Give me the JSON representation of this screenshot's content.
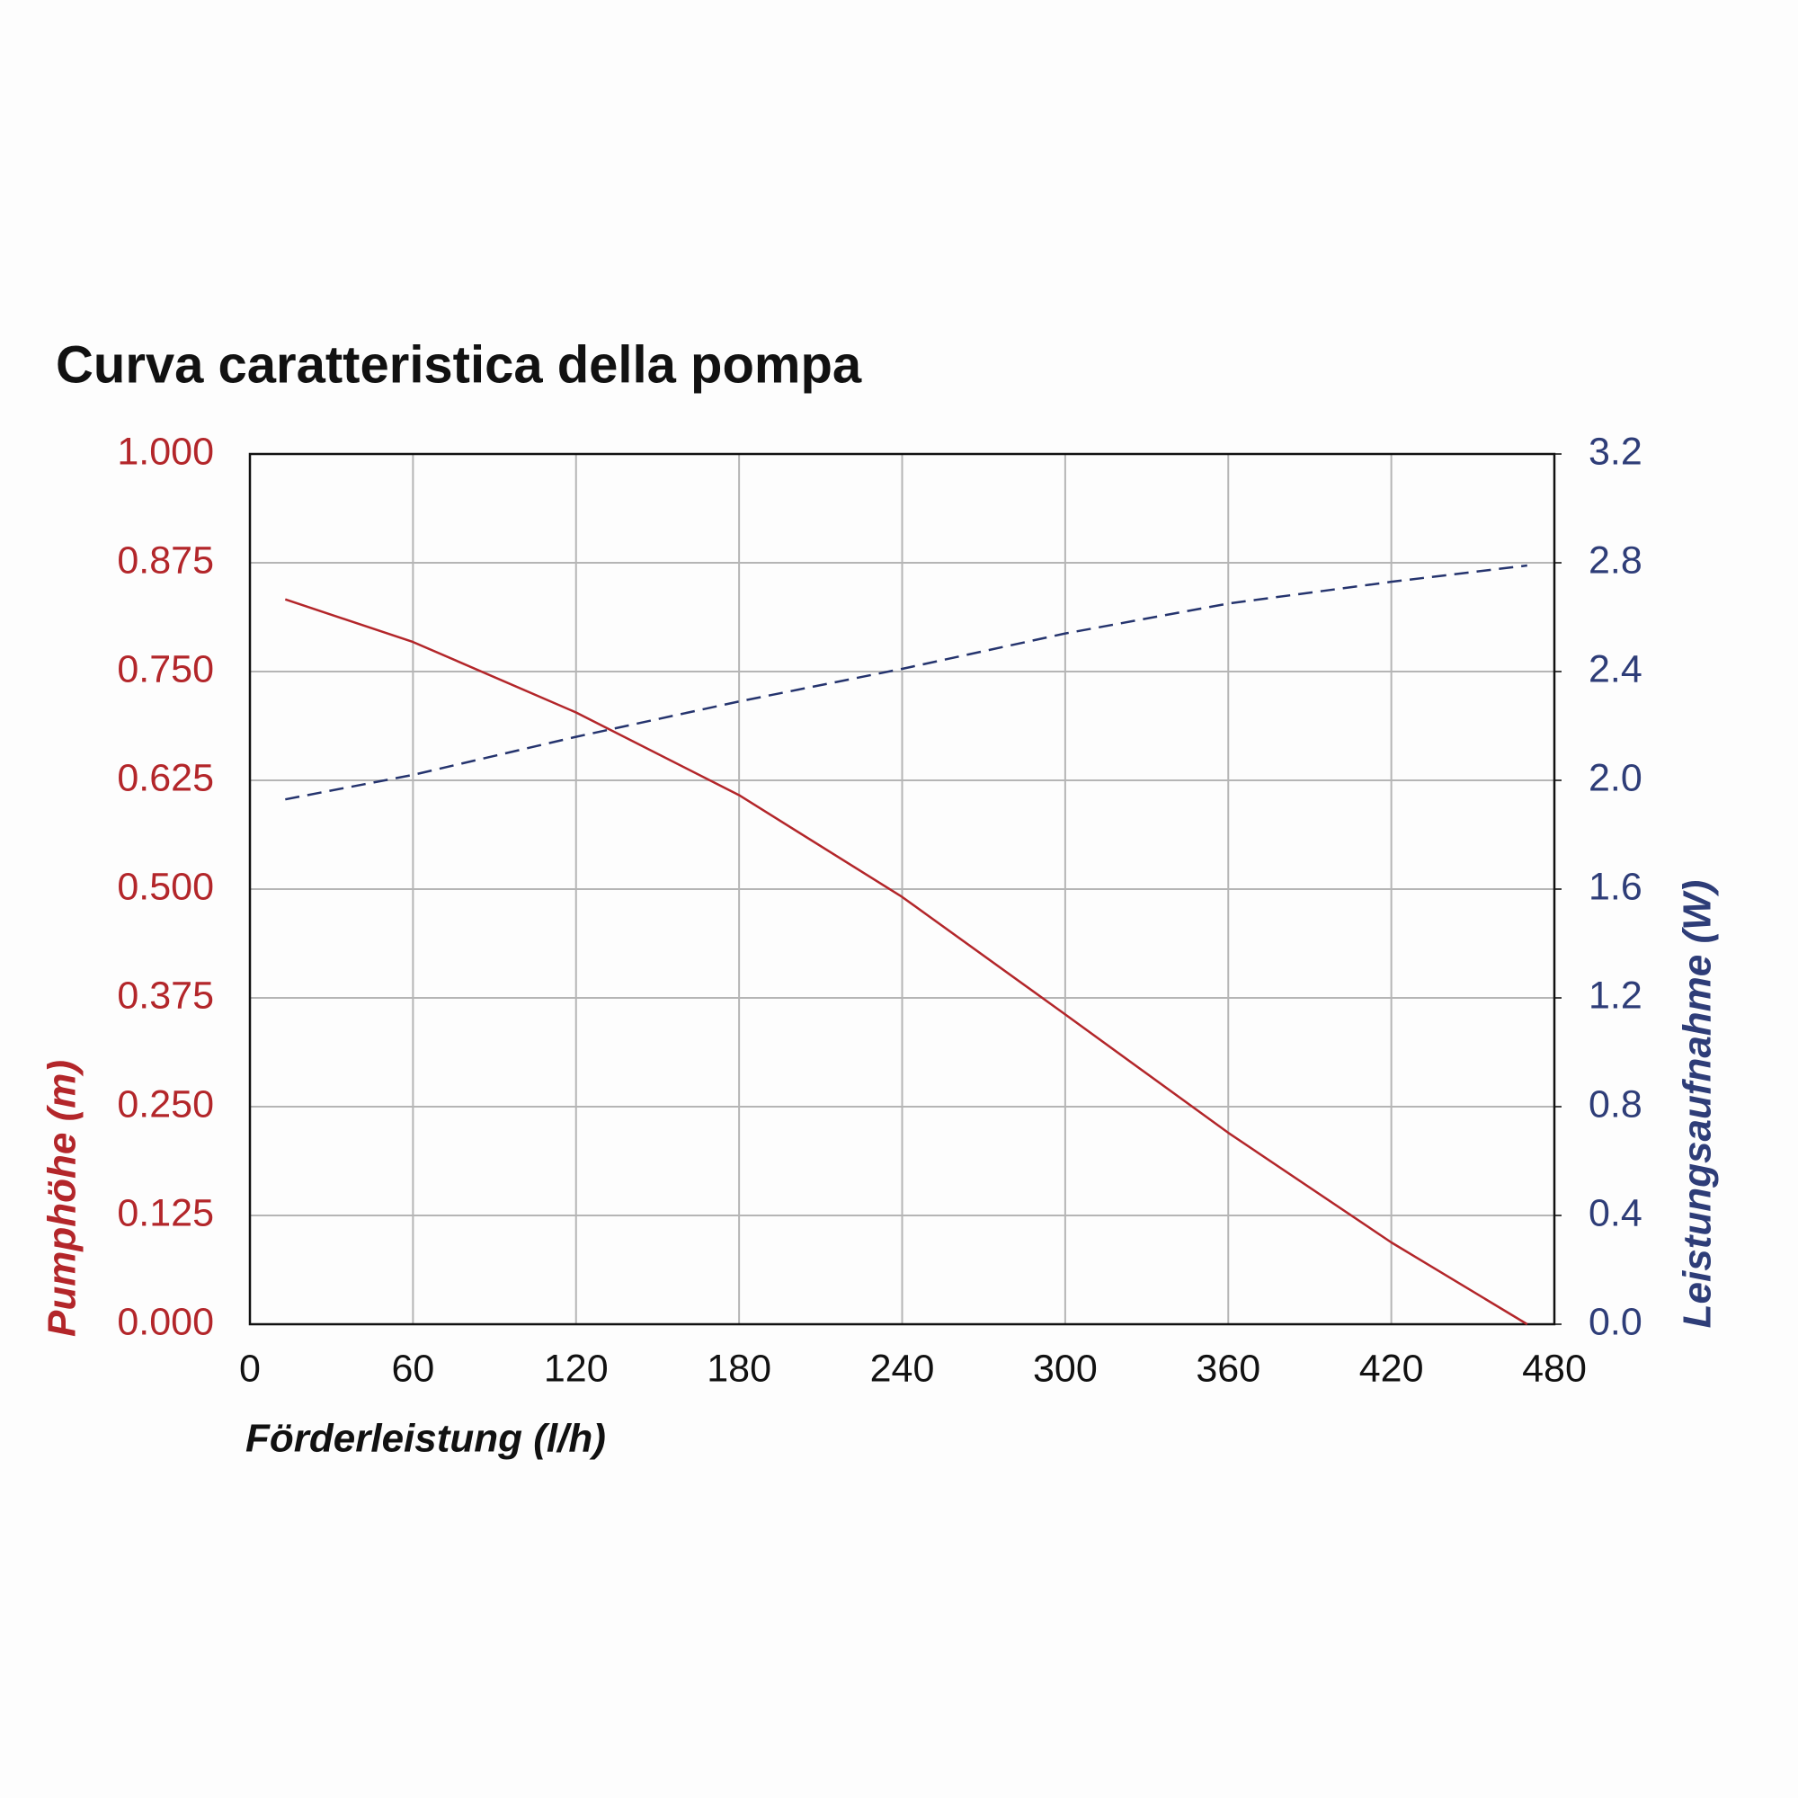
{
  "chart_data": {
    "type": "line",
    "title": "Curva caratteristica della pompa",
    "x_label": "Förderleistung (l/h)",
    "y_label": "Pumphöhe (m)",
    "y2_label": "Leistungsaufnahme (W)",
    "x": [
      13,
      60,
      120,
      180,
      240,
      300,
      360,
      420,
      470
    ],
    "series": [
      {
        "color": "#b3262a",
        "dash": false,
        "values": [
          0.833,
          0.784,
          0.703,
          0.608,
          0.491,
          0.356,
          0.22,
          0.094,
          0
        ]
      },
      {
        "color": "#25346e",
        "dash": true,
        "axis": "y2",
        "values": [
          1.93,
          2.02,
          2.16,
          2.29,
          2.41,
          2.54,
          2.65,
          2.73,
          2.79
        ]
      }
    ],
    "xlim": [
      0,
      480
    ],
    "xticks": [
      0,
      60,
      120,
      180,
      240,
      300,
      360,
      420,
      480
    ],
    "ylim": [
      0,
      1
    ],
    "yticks": [
      {
        "value": 0,
        "label": "0.000"
      },
      0.125,
      {
        "value": 0.25,
        "label": "0.250"
      },
      0.375,
      {
        "value": 0.5,
        "label": "0.500"
      },
      0.625,
      {
        "value": 0.75,
        "label": "0.750"
      },
      0.875,
      {
        "value": 1,
        "label": "1.000"
      }
    ],
    "y2lim": [
      0,
      3.2
    ],
    "y2ticks": [
      {
        "value": 0,
        "label": "0.0"
      },
      0.4,
      0.8,
      1.2,
      1.6,
      {
        "value": 2,
        "label": "2.0"
      },
      2.4,
      2.8,
      3.2
    ],
    "grid": true,
    "y_color": "#b3262a",
    "y2_color": "#2e3d78"
  }
}
